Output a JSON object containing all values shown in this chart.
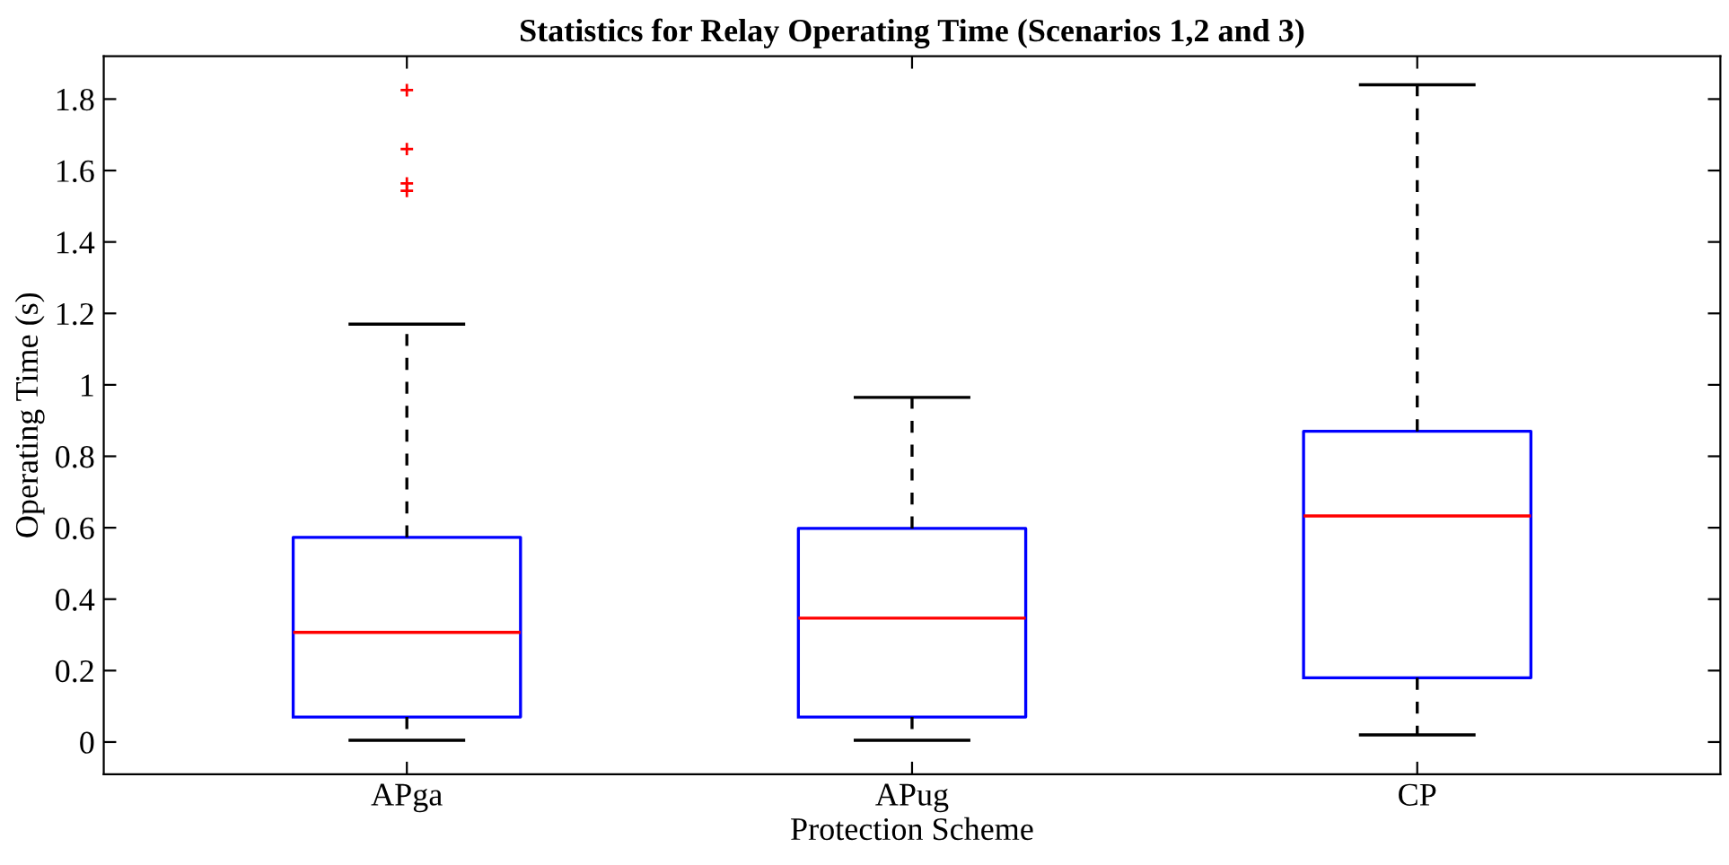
{
  "chart_data": {
    "type": "box",
    "title": "Statistics for Relay Operating Time (Scenarios 1,2 and 3)",
    "xlabel": "Protection Scheme",
    "ylabel": "Operating Time (s)",
    "categories": [
      "APga",
      "APug",
      "CP"
    ],
    "boxes": [
      {
        "low": 0.005,
        "q1": 0.07,
        "median": 0.307,
        "q3": 0.573,
        "high": 1.17,
        "outliers": [
          1.825,
          1.66,
          1.564,
          1.543
        ]
      },
      {
        "low": 0.005,
        "q1": 0.07,
        "median": 0.347,
        "q3": 0.598,
        "high": 0.965
      },
      {
        "low": 0.02,
        "q1": 0.18,
        "median": 0.633,
        "q3": 0.87,
        "high": 1.84
      }
    ],
    "ylim": [
      -0.09,
      1.92
    ],
    "yticks": [
      0,
      0.2,
      0.4,
      0.6,
      0.8,
      1,
      1.2,
      1.4,
      1.6,
      1.8
    ],
    "grid": false,
    "marker": "cross"
  }
}
